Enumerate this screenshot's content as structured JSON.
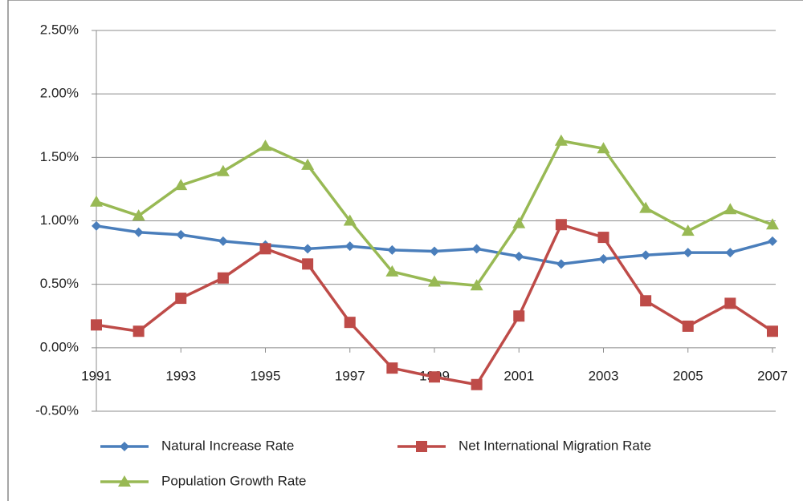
{
  "chart_data": {
    "type": "line",
    "x": [
      1991,
      1992,
      1993,
      1994,
      1995,
      1996,
      1997,
      1998,
      1999,
      2000,
      2001,
      2002,
      2003,
      2004,
      2005,
      2006,
      2007
    ],
    "xlim": [
      1991,
      2007
    ],
    "xticks": [
      1991,
      1993,
      1995,
      1997,
      1999,
      2001,
      2003,
      2005,
      2007
    ],
    "ylim": [
      -0.5,
      2.5
    ],
    "yticks": [
      {
        "value": -0.5,
        "label": "-0.50%"
      },
      {
        "value": 0,
        "label": "0.00%"
      },
      {
        "value": 0.5,
        "label": "0.50%"
      },
      {
        "value": 1,
        "label": "1.00%"
      },
      {
        "value": 1.5,
        "label": "1.50%"
      },
      {
        "value": 2,
        "label": "2.00%"
      },
      {
        "value": 2.5,
        "label": "2.50%"
      }
    ],
    "grid": true,
    "legend": "bottom",
    "series": [
      {
        "name": "Natural Increase Rate",
        "color": "#4a7ebb",
        "marker": "diamond",
        "values": [
          0.96,
          0.91,
          0.89,
          0.84,
          0.81,
          0.78,
          0.8,
          0.77,
          0.76,
          0.78,
          0.72,
          0.66,
          0.7,
          0.73,
          0.75,
          0.75,
          0.84
        ]
      },
      {
        "name": "Net International Migration Rate",
        "color": "#be4b48",
        "marker": "square",
        "values": [
          0.18,
          0.13,
          0.39,
          0.55,
          0.78,
          0.66,
          0.2,
          -0.16,
          -0.23,
          -0.29,
          0.25,
          0.97,
          0.87,
          0.37,
          0.17,
          0.35,
          0.13
        ]
      },
      {
        "name": "Population Growth Rate",
        "color": "#98b954",
        "marker": "triangle",
        "values": [
          1.15,
          1.04,
          1.28,
          1.39,
          1.59,
          1.44,
          1.0,
          0.6,
          0.52,
          0.49,
          0.98,
          1.63,
          1.57,
          1.1,
          0.92,
          1.09,
          0.97
        ]
      }
    ]
  }
}
